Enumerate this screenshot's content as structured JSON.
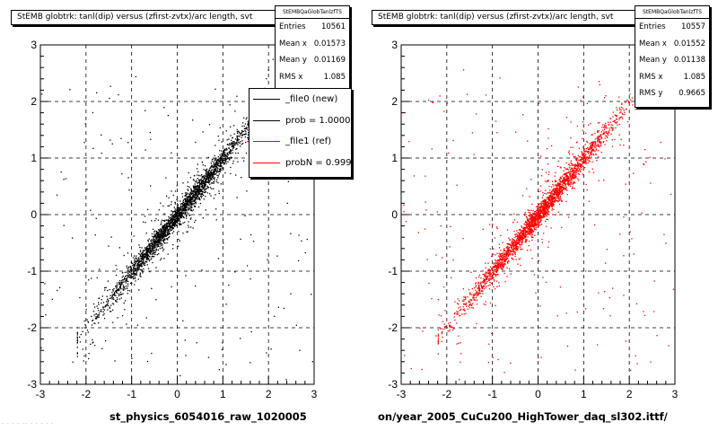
{
  "chart_data": [
    {
      "type": "scatter",
      "panel": "left",
      "title": "StEMB globtrk: tanl(dip) versus (zfirst-zvtx)/arc length, svt",
      "xlim": [
        -3,
        3
      ],
      "ylim": [
        -3,
        3
      ],
      "xticks": [
        "-3",
        "-2",
        "-1",
        "0",
        "1",
        "2",
        "3"
      ],
      "yticks": [
        "-3",
        "-2",
        "-1",
        "0",
        "1",
        "2",
        "3"
      ],
      "grid": true,
      "xlabel_caption": "st_physics_6054016_raw_1020005",
      "marker_color": "#000000",
      "series": [
        {
          "relation": "y ≈ x",
          "x_range": [
            -2.2,
            2.6
          ],
          "entries": 10561
        }
      ],
      "stats": {
        "title": "StEMBQaGlobTanlzfTS",
        "rows": [
          {
            "label": "Entries",
            "value": "10561"
          },
          {
            "label": "Mean x",
            "value": "0.01573"
          },
          {
            "label": "Mean y",
            "value": "0.01169"
          },
          {
            "label": "RMS x",
            "value": "1.085"
          }
        ]
      },
      "legend": [
        {
          "label": "_file0 (new)",
          "color": "#000000"
        },
        {
          "label": "prob = 1.000000",
          "color": "#000000"
        },
        {
          "label": "_file1 (ref)",
          "color": "#ff0000"
        },
        {
          "label": "probN = 0.99975",
          "color": "#ff0000"
        }
      ]
    },
    {
      "type": "scatter",
      "panel": "right",
      "title": "StEMB globtrk: tanl(dip) versus (zfirst-zvtx)/arc length, svt",
      "xlim": [
        -3,
        3
      ],
      "ylim": [
        -3,
        3
      ],
      "xticks": [
        "-3",
        "-2",
        "-1",
        "0",
        "1",
        "2",
        "3"
      ],
      "yticks": [
        "-3",
        "-2",
        "-1",
        "0",
        "1",
        "2",
        "3"
      ],
      "grid": true,
      "xlabel_caption": "on/year_2005_CuCu200_HighTower_daq_sl302.ittf/",
      "marker_color": "#ff0000",
      "series": [
        {
          "relation": "y ≈ x",
          "x_range": [
            -2.2,
            2.6
          ],
          "entries": 10557
        }
      ],
      "stats": {
        "title": "StEMBQaGlobTanlzfTS",
        "rows": [
          {
            "label": "Entries",
            "value": "10557"
          },
          {
            "label": "Mean x",
            "value": "0.01552"
          },
          {
            "label": "Mean y",
            "value": "0.01138"
          },
          {
            "label": "RMS x",
            "value": "1.085"
          },
          {
            "label": "RMS y",
            "value": "0.9665"
          }
        ]
      }
    }
  ],
  "footnote": "· · · · ·· · · · · ·"
}
